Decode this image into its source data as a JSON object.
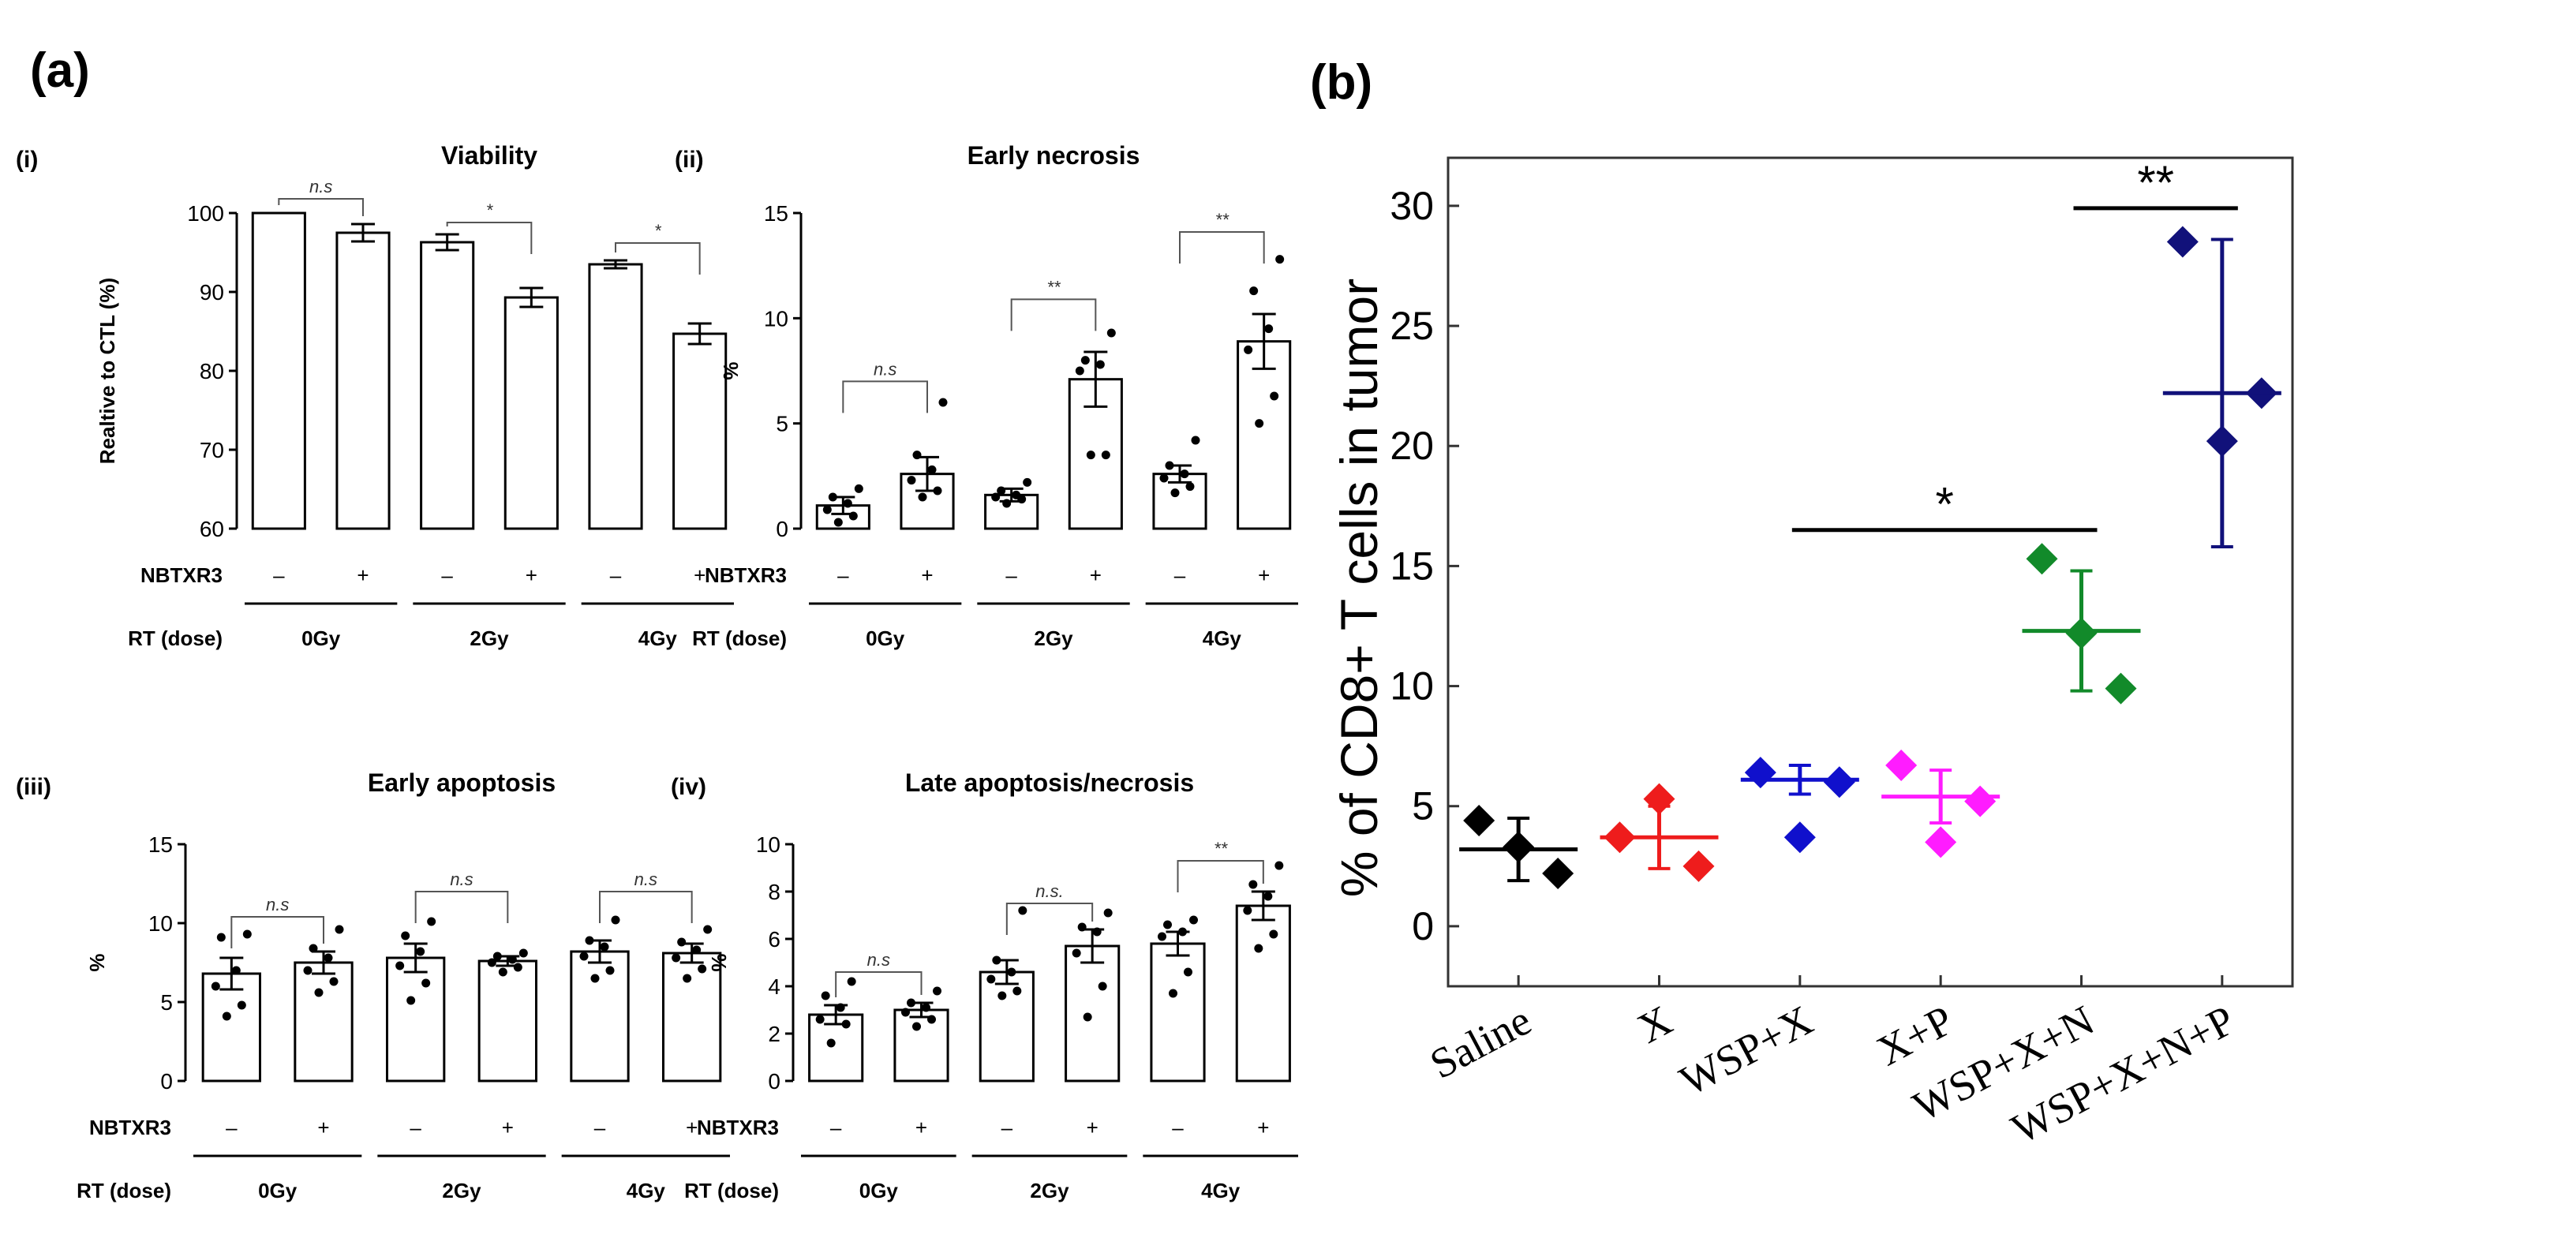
{
  "figure": {
    "label_a": "(a)",
    "label_b": "(b)"
  },
  "chart_data": [
    {
      "id": "i",
      "type": "bar",
      "panel": "(i)",
      "title": "Viability",
      "ylabel": "Realtive to CTL (%)",
      "ylim": [
        60,
        100
      ],
      "yticks": [
        60,
        70,
        80,
        90,
        100
      ],
      "row1_label": "NBTXR3",
      "row2_label": "RT (dose)",
      "nbtxr3": [
        "–",
        "+",
        "–",
        "+",
        "–",
        "+"
      ],
      "doses": [
        "0Gy",
        "2Gy",
        "4Gy"
      ],
      "values": [
        100,
        97.5,
        96.3,
        89.3,
        93.5,
        84.7
      ],
      "errors": [
        0,
        1.1,
        1.0,
        1.2,
        0.5,
        1.3
      ],
      "points": [
        [],
        [],
        [],
        [],
        [],
        []
      ],
      "comparisons": [
        {
          "pair": [
            0,
            1
          ],
          "label": "n.s",
          "y": 101.8
        },
        {
          "pair": [
            2,
            3
          ],
          "label": "*",
          "y": 98.8
        },
        {
          "pair": [
            4,
            5
          ],
          "label": "*",
          "y": 96.2
        }
      ]
    },
    {
      "id": "ii",
      "type": "bar",
      "panel": "(ii)",
      "title": "Early necrosis",
      "ylabel": "%",
      "ylim": [
        0,
        15
      ],
      "yticks": [
        0,
        5,
        10,
        15
      ],
      "row1_label": "NBTXR3",
      "row2_label": "RT (dose)",
      "nbtxr3": [
        "–",
        "+",
        "–",
        "+",
        "–",
        "+"
      ],
      "doses": [
        "0Gy",
        "2Gy",
        "4Gy"
      ],
      "values": [
        1.1,
        2.6,
        1.6,
        7.1,
        2.6,
        8.9
      ],
      "errors": [
        0.4,
        0.8,
        0.3,
        1.3,
        0.4,
        1.3
      ],
      "points": [
        [
          0.3,
          0.6,
          0.9,
          1.2,
          1.5,
          1.9
        ],
        [
          1.5,
          1.8,
          2.3,
          2.8,
          3.5,
          6.0
        ],
        [
          1.2,
          1.4,
          1.5,
          1.6,
          1.8,
          2.2
        ],
        [
          3.5,
          3.5,
          7.5,
          7.8,
          8.0,
          9.3
        ],
        [
          1.7,
          2.0,
          2.4,
          2.6,
          3.0,
          4.2
        ],
        [
          5.0,
          6.3,
          8.5,
          9.5,
          11.3,
          12.8
        ]
      ],
      "comparisons": [
        {
          "pair": [
            0,
            1
          ],
          "label": "n.s",
          "y": 7.0
        },
        {
          "pair": [
            2,
            3
          ],
          "label": "**",
          "y": 10.9
        },
        {
          "pair": [
            4,
            5
          ],
          "label": "**",
          "y": 14.1
        }
      ]
    },
    {
      "id": "iii",
      "type": "bar",
      "panel": "(iii)",
      "title": "Early apoptosis",
      "ylabel": "%",
      "ylim": [
        0,
        15
      ],
      "yticks": [
        0,
        5,
        10,
        15
      ],
      "row1_label": "NBTXR3",
      "row2_label": "RT (dose)",
      "nbtxr3": [
        "–",
        "+",
        "–",
        "+",
        "–",
        "+"
      ],
      "doses": [
        "0Gy",
        "2Gy",
        "4Gy"
      ],
      "values": [
        6.8,
        7.5,
        7.8,
        7.6,
        8.2,
        8.1
      ],
      "errors": [
        1.0,
        0.7,
        0.9,
        0.3,
        0.7,
        0.6
      ],
      "points": [
        [
          4.1,
          4.8,
          6.0,
          7.0,
          9.1,
          9.3
        ],
        [
          5.6,
          6.3,
          7.0,
          7.8,
          8.4,
          9.6
        ],
        [
          5.1,
          6.2,
          7.3,
          8.2,
          9.2,
          10.1
        ],
        [
          6.9,
          7.2,
          7.5,
          7.7,
          7.9,
          8.1
        ],
        [
          6.5,
          7.0,
          7.9,
          8.5,
          8.9,
          10.2
        ],
        [
          6.5,
          7.1,
          7.8,
          8.3,
          8.8,
          9.6
        ]
      ],
      "comparisons": [
        {
          "pair": [
            0,
            1
          ],
          "label": "n.s",
          "y": 10.4
        },
        {
          "pair": [
            2,
            3
          ],
          "label": "n.s",
          "y": 12.0
        },
        {
          "pair": [
            4,
            5
          ],
          "label": "n.s",
          "y": 12.0
        }
      ]
    },
    {
      "id": "iv",
      "type": "bar",
      "panel": "(iv)",
      "title": "Late apoptosis/necrosis",
      "ylabel": "%",
      "ylim": [
        0,
        10
      ],
      "yticks": [
        0,
        2,
        4,
        6,
        8,
        10
      ],
      "row1_label": "NBTXR3",
      "row2_label": "RT (dose)",
      "nbtxr3": [
        "–",
        "+",
        "–",
        "+",
        "–",
        "+"
      ],
      "doses": [
        "0Gy",
        "2Gy",
        "4Gy"
      ],
      "values": [
        2.8,
        3.0,
        4.6,
        5.7,
        5.8,
        7.4
      ],
      "errors": [
        0.4,
        0.3,
        0.5,
        0.7,
        0.5,
        0.6
      ],
      "points": [
        [
          1.6,
          2.4,
          2.6,
          3.1,
          3.6,
          4.2
        ],
        [
          2.3,
          2.6,
          2.9,
          3.1,
          3.3,
          3.8
        ],
        [
          3.6,
          3.8,
          4.3,
          4.6,
          5.1,
          7.2
        ],
        [
          2.7,
          4.0,
          5.4,
          6.3,
          6.5,
          7.1
        ],
        [
          3.7,
          4.6,
          6.1,
          6.3,
          6.6,
          6.8
        ],
        [
          5.6,
          6.2,
          7.2,
          7.8,
          8.3,
          9.1
        ]
      ],
      "comparisons": [
        {
          "pair": [
            0,
            1
          ],
          "label": "n.s",
          "y": 4.6
        },
        {
          "pair": [
            2,
            3
          ],
          "label": "n.s.",
          "y": 7.5
        },
        {
          "pair": [
            4,
            5
          ],
          "label": "**",
          "y": 9.3
        }
      ]
    },
    {
      "id": "b",
      "type": "scatter",
      "title": "",
      "ylabel": "% of CD8+ T cells in tumor",
      "ylim": [
        -2.5,
        32
      ],
      "yticks": [
        0,
        5,
        10,
        15,
        20,
        25,
        30
      ],
      "categories": [
        "Saline",
        "X",
        "WSP+X",
        "X+P",
        "WSP+X+N",
        "WSP+X+N+P"
      ],
      "colors": [
        "#000000",
        "#ee1c1c",
        "#1010cc",
        "#ff1cff",
        "#128a2a",
        "#11117a"
      ],
      "means": [
        3.2,
        3.7,
        6.1,
        5.4,
        12.3,
        22.2
      ],
      "errors": [
        1.3,
        1.3,
        0.6,
        1.1,
        2.5,
        6.4
      ],
      "points": [
        [
          4.4,
          3.3,
          2.2
        ],
        [
          3.7,
          5.3,
          2.5
        ],
        [
          6.4,
          3.7,
          6.0
        ],
        [
          6.7,
          3.5,
          5.2
        ],
        [
          15.3,
          12.2,
          9.9
        ],
        [
          28.5,
          20.2,
          22.2
        ]
      ],
      "comparisons": [
        {
          "from": 2,
          "to": 4,
          "label": "*",
          "y": 16.5
        },
        {
          "from": 4,
          "to": 5,
          "label": "**",
          "y": 29.9
        }
      ]
    }
  ]
}
